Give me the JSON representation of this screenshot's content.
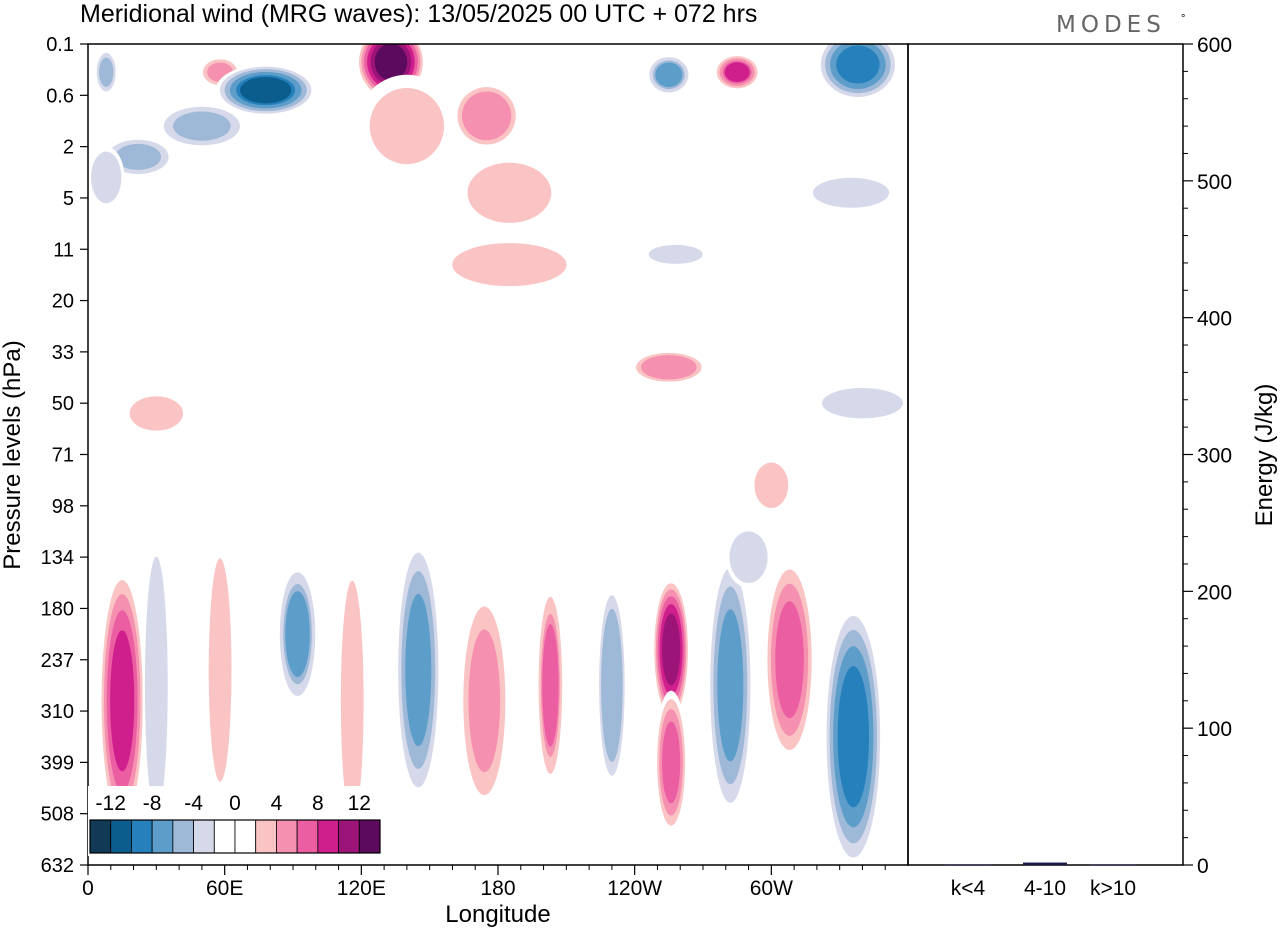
{
  "logo": {
    "text": "MODES",
    "mark": "°"
  },
  "chart_data": [
    {
      "type": "heatmap",
      "title": "Meridional wind (MRG waves):  13/05/2025  00 UTC  + 072 hrs",
      "xlabel": "Longitude",
      "ylabel": "Pressure levels (hPa)",
      "x_ticks": [
        "0",
        "60E",
        "120E",
        "180",
        "120W",
        "60W"
      ],
      "x_tick_degrees": [
        0,
        60,
        120,
        180,
        240,
        300
      ],
      "x_range_degrees": [
        0,
        360
      ],
      "y_levels": [
        "0.1",
        "0.6",
        "2",
        "5",
        "11",
        "20",
        "33",
        "50",
        "71",
        "98",
        "134",
        "180",
        "237",
        "310",
        "399",
        "508",
        "632"
      ],
      "colorbar": {
        "labels": [
          "-12",
          "-8",
          "-4",
          "0",
          "4",
          "8",
          "12"
        ],
        "label_values": [
          -12,
          -8,
          -4,
          0,
          4,
          8,
          12
        ],
        "bins": [
          -14,
          -12,
          -10,
          -8,
          -6,
          -4,
          -2,
          0,
          2,
          4,
          6,
          8,
          10,
          12,
          14
        ],
        "colors": [
          "#103a55",
          "#0b5d8e",
          "#2580bb",
          "#5d9dca",
          "#9eb8d8",
          "#d6d9ea",
          "#ffffff",
          "#ffffff",
          "#fbc4c4",
          "#f590b0",
          "#eb5ea2",
          "#cf1f8c",
          "#9c1478",
          "#5c0a5d"
        ]
      },
      "features": [
        {
          "lon": 8,
          "level": 0.55,
          "value": -6,
          "rx": 5,
          "ry": 0.45
        },
        {
          "lon": 58,
          "level": 0.55,
          "value": 6,
          "rx": 9,
          "ry": 0.3
        },
        {
          "lon": 78,
          "level": 0.9,
          "value": -11,
          "rx": 22,
          "ry": 0.5
        },
        {
          "lon": 50,
          "level": 1.6,
          "value": -6,
          "rx": 20,
          "ry": 0.45
        },
        {
          "lon": 22,
          "level": 2.2,
          "value": -6,
          "rx": 16,
          "ry": 0.4
        },
        {
          "lon": 8,
          "level": 2.6,
          "value": -3,
          "rx": 8,
          "ry": 0.6
        },
        {
          "lon": 133,
          "level": 0.35,
          "value": 14,
          "rx": 15,
          "ry": 0.75
        },
        {
          "lon": 140,
          "level": 1.6,
          "value": 4,
          "rx": 22,
          "ry": 1.0
        },
        {
          "lon": 175,
          "level": 1.4,
          "value": 5,
          "rx": 16,
          "ry": 0.7
        },
        {
          "lon": 185,
          "level": 2.9,
          "value": 3,
          "rx": 22,
          "ry": 0.7
        },
        {
          "lon": 255,
          "level": 0.6,
          "value": -7,
          "rx": 10,
          "ry": 0.4
        },
        {
          "lon": 285,
          "level": 0.55,
          "value": 9,
          "rx": 10,
          "ry": 0.35
        },
        {
          "lon": 338,
          "level": 0.4,
          "value": -10,
          "rx": 18,
          "ry": 0.7
        },
        {
          "lon": 335,
          "level": 2.9,
          "value": -3,
          "rx": 20,
          "ry": 0.35
        },
        {
          "lon": 185,
          "level": 4.3,
          "value": 3,
          "rx": 30,
          "ry": 0.5
        },
        {
          "lon": 258,
          "level": 4.1,
          "value": -4,
          "rx": 16,
          "ry": 0.25
        },
        {
          "lon": 255,
          "level": 6.3,
          "value": 5,
          "rx": 18,
          "ry": 0.35
        },
        {
          "lon": 340,
          "level": 7.0,
          "value": -4,
          "rx": 24,
          "ry": 0.4
        },
        {
          "lon": 30,
          "level": 7.2,
          "value": 3,
          "rx": 14,
          "ry": 0.4
        },
        {
          "lon": 15,
          "level": 12.8,
          "value": 10,
          "rx": 10,
          "ry": 2.6
        },
        {
          "lon": 30,
          "level": 12.5,
          "value": -3,
          "rx": 6,
          "ry": 3.0
        },
        {
          "lon": 58,
          "level": 12.2,
          "value": 3,
          "rx": 6,
          "ry": 2.6
        },
        {
          "lon": 92,
          "level": 11.5,
          "value": -7,
          "rx": 9,
          "ry": 1.4
        },
        {
          "lon": 116,
          "level": 12.8,
          "value": 3,
          "rx": 6,
          "ry": 2.8
        },
        {
          "lon": 145,
          "level": 12.2,
          "value": -8,
          "rx": 10,
          "ry": 2.6
        },
        {
          "lon": 174,
          "level": 12.8,
          "value": 6,
          "rx": 11,
          "ry": 2.2
        },
        {
          "lon": 203,
          "level": 12.5,
          "value": 7,
          "rx": 6,
          "ry": 2.0
        },
        {
          "lon": 230,
          "level": 12.5,
          "value": -5,
          "rx": 7,
          "ry": 2.2
        },
        {
          "lon": 256,
          "level": 11.8,
          "value": 12,
          "rx": 8,
          "ry": 1.4
        },
        {
          "lon": 256,
          "level": 14.0,
          "value": 8,
          "rx": 7,
          "ry": 1.4
        },
        {
          "lon": 282,
          "level": 12.5,
          "value": -8,
          "rx": 10,
          "ry": 2.6
        },
        {
          "lon": 308,
          "level": 12.0,
          "value": 8,
          "rx": 11,
          "ry": 2.0
        },
        {
          "lon": 336,
          "level": 13.5,
          "value": -10,
          "rx": 13,
          "ry": 2.6
        },
        {
          "lon": 300,
          "level": 8.6,
          "value": 4,
          "rx": 10,
          "ry": 0.6
        },
        {
          "lon": 290,
          "level": 10.0,
          "value": -3,
          "rx": 10,
          "ry": 0.6
        }
      ],
      "_note": "features: approximate contour centres read from the figure (lon in degrees east, level as pressure-level index 0=0.1 … 16=632, value in m/s, rx in degrees, ry in level steps)"
    },
    {
      "type": "bar",
      "ylabel": "Energy (J/kg)",
      "categories": [
        "k<4",
        "4-10",
        "k>10"
      ],
      "values": [
        0.3,
        1.8,
        0.3
      ],
      "ylim": [
        0,
        600
      ],
      "y_ticks": [
        "0",
        "100",
        "200",
        "300",
        "400",
        "500",
        "600"
      ],
      "y_tick_values": [
        0,
        100,
        200,
        300,
        400,
        500,
        600
      ],
      "bar_color": "#1a1a4a"
    }
  ]
}
